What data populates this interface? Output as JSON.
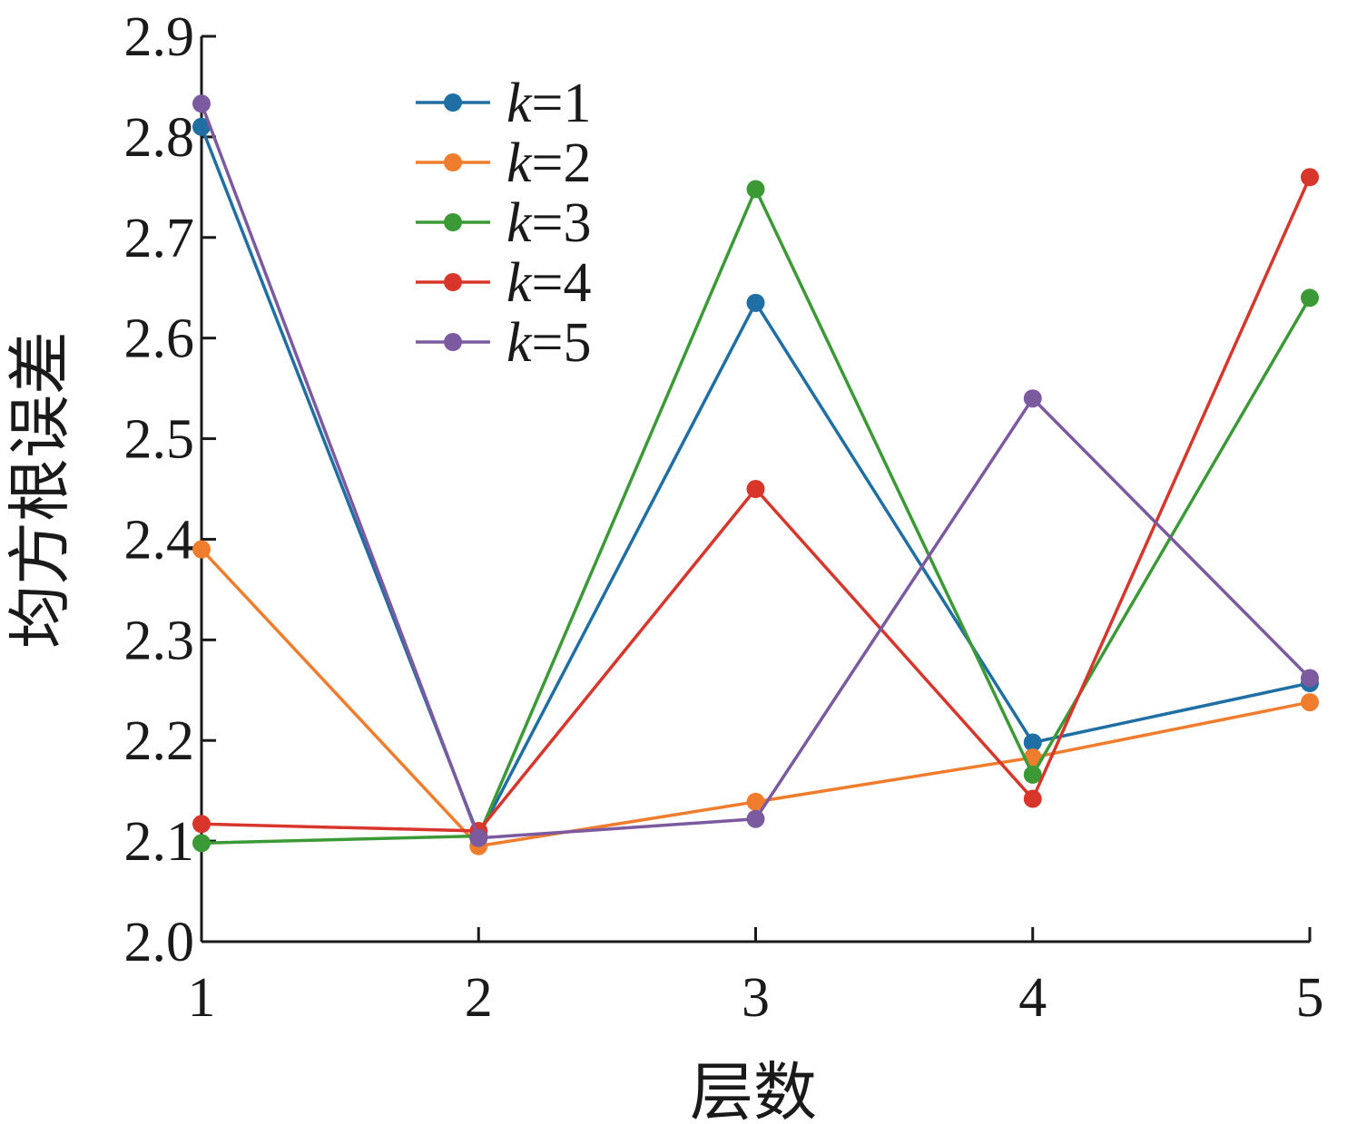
{
  "chart_data": {
    "type": "line",
    "title": "",
    "xlabel": "层数",
    "ylabel": "均方根误差",
    "x": [
      1,
      2,
      3,
      4,
      5
    ],
    "x_tick_labels": [
      "1",
      "2",
      "3",
      "4",
      "5"
    ],
    "y_tick_labels": [
      "2.0",
      "2.1",
      "2.2",
      "2.3",
      "2.4",
      "2.5",
      "2.6",
      "2.7",
      "2.8",
      "2.9"
    ],
    "xlim": [
      1,
      5
    ],
    "ylim": [
      2.0,
      2.9
    ],
    "grid": false,
    "legend_position": "top-center",
    "series": [
      {
        "name": "k=1",
        "legend_k": "k",
        "legend_rest": "=1",
        "color": "#1f6fa4",
        "values": [
          2.81,
          2.105,
          2.635,
          2.198,
          2.257
        ]
      },
      {
        "name": "k=2",
        "legend_k": "k",
        "legend_rest": "=2",
        "color": "#f07d2e",
        "values": [
          2.39,
          2.095,
          2.139,
          2.183,
          2.238
        ]
      },
      {
        "name": "k=3",
        "legend_k": "k",
        "legend_rest": "=3",
        "color": "#3b9a36",
        "values": [
          2.098,
          2.105,
          2.748,
          2.166,
          2.64
        ]
      },
      {
        "name": "k=4",
        "legend_k": "k",
        "legend_rest": "=4",
        "color": "#d8352b",
        "values": [
          2.117,
          2.11,
          2.45,
          2.142,
          2.76
        ]
      },
      {
        "name": "k=5",
        "legend_k": "k",
        "legend_rest": "=5",
        "color": "#7b5aa0",
        "values": [
          2.833,
          2.103,
          2.122,
          2.54,
          2.262
        ]
      }
    ]
  }
}
